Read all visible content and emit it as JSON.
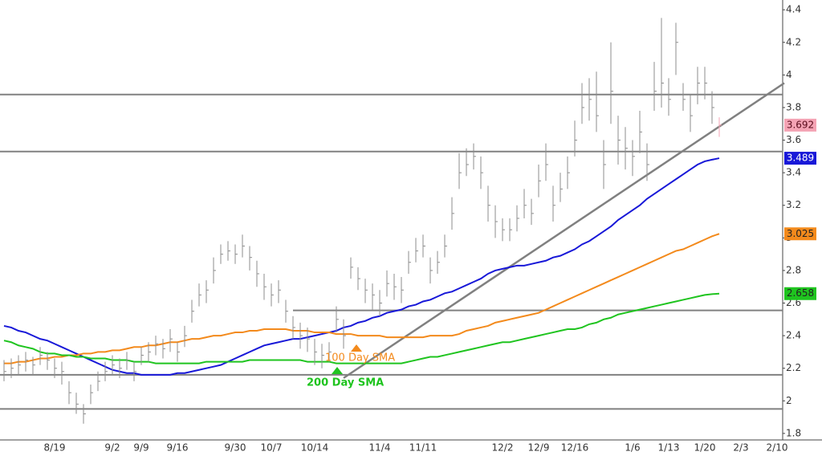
{
  "chart_data": {
    "type": "ohlc",
    "categories": [
      null,
      null,
      null,
      null,
      null,
      null,
      null,
      "8/19",
      null,
      null,
      null,
      null,
      null,
      null,
      null,
      "9/2",
      null,
      null,
      null,
      "9/9",
      null,
      null,
      null,
      null,
      "9/16",
      null,
      null,
      null,
      null,
      null,
      null,
      null,
      "9/30",
      null,
      null,
      null,
      null,
      "10/7",
      null,
      null,
      null,
      null,
      null,
      "10/14",
      null,
      null,
      null,
      null,
      null,
      null,
      null,
      null,
      "11/4",
      null,
      null,
      null,
      null,
      null,
      "11/11",
      null,
      null,
      null,
      null,
      null,
      null,
      null,
      null,
      null,
      null,
      "12/2",
      null,
      null,
      null,
      null,
      "12/9",
      null,
      null,
      null,
      null,
      "12/16",
      null,
      null,
      null,
      null,
      null,
      null,
      null,
      "1/6",
      null,
      null,
      null,
      null,
      "1/13",
      null,
      null,
      null,
      null,
      "1/20",
      null,
      null,
      null,
      null,
      "2/3",
      null,
      null,
      null,
      null,
      "2/10"
    ],
    "high": [
      2.25,
      2.26,
      2.28,
      2.3,
      2.27,
      2.33,
      2.3,
      2.26,
      2.24,
      2.12,
      2.05,
      1.98,
      2.1,
      2.18,
      2.24,
      2.28,
      2.26,
      2.3,
      2.24,
      2.33,
      2.36,
      2.4,
      2.38,
      2.44,
      2.36,
      2.46,
      2.62,
      2.72,
      2.74,
      2.88,
      2.96,
      2.98,
      2.96,
      3.02,
      2.95,
      2.86,
      2.78,
      2.72,
      2.74,
      2.62,
      2.52,
      2.48,
      2.45,
      2.38,
      2.35,
      2.36,
      2.58,
      2.5,
      2.88,
      2.82,
      2.75,
      2.72,
      2.68,
      2.8,
      2.78,
      2.76,
      2.92,
      3.0,
      3.02,
      2.88,
      2.92,
      3.02,
      3.25,
      3.52,
      3.55,
      3.58,
      3.5,
      3.32,
      3.2,
      3.12,
      3.12,
      3.2,
      3.3,
      3.24,
      3.45,
      3.58,
      3.32,
      3.4,
      3.5,
      3.72,
      3.95,
      3.98,
      4.02,
      3.6,
      4.2,
      3.75,
      3.68,
      3.6,
      3.78,
      3.58,
      4.08,
      4.35,
      3.98,
      4.32,
      3.95,
      3.88,
      4.05,
      4.05,
      3.9,
      3.74,
      null,
      null,
      null,
      null,
      null,
      null,
      null,
      null
    ],
    "low": [
      2.12,
      2.14,
      2.16,
      2.18,
      2.16,
      2.22,
      2.19,
      2.14,
      2.1,
      1.98,
      1.92,
      1.86,
      1.98,
      2.06,
      2.12,
      2.16,
      2.14,
      2.19,
      2.12,
      2.22,
      2.24,
      2.28,
      2.26,
      2.3,
      2.24,
      2.33,
      2.48,
      2.58,
      2.6,
      2.72,
      2.84,
      2.86,
      2.84,
      2.88,
      2.8,
      2.7,
      2.62,
      2.58,
      2.6,
      2.48,
      2.38,
      2.32,
      2.3,
      2.22,
      2.2,
      2.24,
      2.42,
      2.32,
      2.75,
      2.68,
      2.6,
      2.56,
      2.52,
      2.64,
      2.62,
      2.6,
      2.78,
      2.85,
      2.88,
      2.72,
      2.78,
      2.88,
      3.05,
      3.3,
      3.38,
      3.42,
      3.3,
      3.1,
      3.0,
      2.98,
      2.98,
      3.04,
      3.12,
      3.08,
      3.25,
      3.35,
      3.1,
      3.22,
      3.3,
      3.5,
      3.7,
      3.72,
      3.65,
      3.3,
      3.7,
      3.45,
      3.42,
      3.38,
      3.52,
      3.35,
      3.78,
      3.8,
      3.75,
      4.0,
      3.78,
      3.65,
      3.82,
      3.85,
      3.7,
      3.62,
      null,
      null,
      null,
      null,
      null,
      null,
      null,
      null
    ],
    "close": [
      2.18,
      2.2,
      2.22,
      2.25,
      2.22,
      2.28,
      2.25,
      2.2,
      2.18,
      2.05,
      1.98,
      1.92,
      2.05,
      2.12,
      2.18,
      2.22,
      2.2,
      2.25,
      2.18,
      2.28,
      2.3,
      2.35,
      2.32,
      2.38,
      2.3,
      2.4,
      2.55,
      2.65,
      2.68,
      2.8,
      2.9,
      2.92,
      2.9,
      2.95,
      2.88,
      2.78,
      2.7,
      2.65,
      2.68,
      2.55,
      2.45,
      2.4,
      2.38,
      2.3,
      2.28,
      2.3,
      2.5,
      2.4,
      2.82,
      2.75,
      2.68,
      2.65,
      2.6,
      2.72,
      2.7,
      2.68,
      2.85,
      2.92,
      2.95,
      2.8,
      2.85,
      2.95,
      3.15,
      3.4,
      3.45,
      3.5,
      3.4,
      3.2,
      3.1,
      3.05,
      3.05,
      3.12,
      3.2,
      3.15,
      3.35,
      3.45,
      3.2,
      3.3,
      3.4,
      3.6,
      3.8,
      3.85,
      3.75,
      3.45,
      3.9,
      3.6,
      3.55,
      3.5,
      3.65,
      3.45,
      3.9,
      3.95,
      3.85,
      4.2,
      3.85,
      3.75,
      3.95,
      3.95,
      3.8,
      3.692,
      null,
      null,
      null,
      null,
      null,
      null,
      null,
      null
    ],
    "price_color": "#8c8c8c",
    "last_price_color": "#f4a3b4",
    "series": [
      {
        "color": "#1818d8",
        "values": [
          2.46,
          2.45,
          2.43,
          2.42,
          2.4,
          2.38,
          2.37,
          2.35,
          2.33,
          2.31,
          2.29,
          2.27,
          2.25,
          2.23,
          2.21,
          2.19,
          2.18,
          2.17,
          2.17,
          2.16,
          2.16,
          2.16,
          2.16,
          2.16,
          2.17,
          2.17,
          2.18,
          2.19,
          2.2,
          2.21,
          2.22,
          2.24,
          2.26,
          2.28,
          2.3,
          2.32,
          2.34,
          2.35,
          2.36,
          2.37,
          2.38,
          2.38,
          2.39,
          2.4,
          2.41,
          2.42,
          2.43,
          2.45,
          2.46,
          2.48,
          2.49,
          2.51,
          2.52,
          2.54,
          2.55,
          2.56,
          2.58,
          2.59,
          2.61,
          2.62,
          2.64,
          2.66,
          2.67,
          2.69,
          2.71,
          2.73,
          2.75,
          2.78,
          2.8,
          2.81,
          2.82,
          2.83,
          2.83,
          2.84,
          2.85,
          2.86,
          2.88,
          2.89,
          2.91,
          2.93,
          2.96,
          2.98,
          3.01,
          3.04,
          3.07,
          3.11,
          3.14,
          3.17,
          3.2,
          3.24,
          3.27,
          3.3,
          3.33,
          3.36,
          3.39,
          3.42,
          3.45,
          3.47,
          3.48,
          3.489,
          null,
          null,
          null,
          null,
          null,
          null,
          null,
          null
        ]
      },
      {
        "name": "100 Day SMA",
        "color": "#f38a1c",
        "values": [
          2.23,
          2.23,
          2.24,
          2.24,
          2.25,
          2.26,
          2.26,
          2.27,
          2.27,
          2.28,
          2.28,
          2.29,
          2.29,
          2.3,
          2.3,
          2.31,
          2.31,
          2.32,
          2.33,
          2.33,
          2.34,
          2.34,
          2.35,
          2.36,
          2.36,
          2.37,
          2.38,
          2.38,
          2.39,
          2.4,
          2.4,
          2.41,
          2.42,
          2.42,
          2.43,
          2.43,
          2.44,
          2.44,
          2.44,
          2.44,
          2.43,
          2.43,
          2.43,
          2.42,
          2.42,
          2.42,
          2.41,
          2.41,
          2.41,
          2.4,
          2.4,
          2.4,
          2.4,
          2.39,
          2.39,
          2.39,
          2.39,
          2.39,
          2.39,
          2.4,
          2.4,
          2.4,
          2.4,
          2.41,
          2.43,
          2.44,
          2.45,
          2.46,
          2.48,
          2.49,
          2.5,
          2.51,
          2.52,
          2.53,
          2.54,
          2.56,
          2.58,
          2.6,
          2.62,
          2.64,
          2.66,
          2.68,
          2.7,
          2.72,
          2.74,
          2.76,
          2.78,
          2.8,
          2.82,
          2.84,
          2.86,
          2.88,
          2.9,
          2.92,
          2.93,
          2.95,
          2.97,
          2.99,
          3.01,
          3.025,
          null,
          null,
          null,
          null,
          null,
          null,
          null,
          null
        ]
      },
      {
        "name": "200 Day SMA",
        "color": "#1fc41f",
        "values": [
          2.37,
          2.36,
          2.34,
          2.33,
          2.32,
          2.3,
          2.29,
          2.29,
          2.28,
          2.28,
          2.27,
          2.27,
          2.26,
          2.26,
          2.26,
          2.25,
          2.25,
          2.25,
          2.24,
          2.24,
          2.24,
          2.23,
          2.23,
          2.23,
          2.23,
          2.23,
          2.23,
          2.23,
          2.24,
          2.24,
          2.24,
          2.24,
          2.24,
          2.24,
          2.25,
          2.25,
          2.25,
          2.25,
          2.25,
          2.25,
          2.25,
          2.25,
          2.24,
          2.24,
          2.24,
          2.24,
          2.23,
          2.23,
          2.23,
          2.23,
          2.23,
          2.23,
          2.23,
          2.23,
          2.23,
          2.23,
          2.24,
          2.25,
          2.26,
          2.27,
          2.27,
          2.28,
          2.29,
          2.3,
          2.31,
          2.32,
          2.33,
          2.34,
          2.35,
          2.36,
          2.36,
          2.37,
          2.38,
          2.39,
          2.4,
          2.41,
          2.42,
          2.43,
          2.44,
          2.44,
          2.45,
          2.47,
          2.48,
          2.5,
          2.51,
          2.53,
          2.54,
          2.55,
          2.56,
          2.57,
          2.58,
          2.59,
          2.6,
          2.61,
          2.62,
          2.63,
          2.64,
          2.65,
          2.655,
          2.658,
          null,
          null,
          null,
          null,
          null,
          null,
          null,
          null
        ]
      }
    ],
    "ylim": [
      1.76,
      4.46
    ],
    "yticks": [
      1.8,
      2,
      2.2,
      2.4,
      2.6,
      2.8,
      3,
      3.2,
      3.4,
      3.6,
      3.8,
      4,
      4.2,
      4.4
    ],
    "hlines": [
      3.88,
      3.53,
      2.16,
      1.95
    ],
    "support_line": {
      "value": 2.555,
      "from_index": 40
    },
    "trendline": {
      "from": [
        47,
        2.14
      ],
      "to": [
        108,
        3.95
      ]
    },
    "line_color": "#808080"
  }
}
